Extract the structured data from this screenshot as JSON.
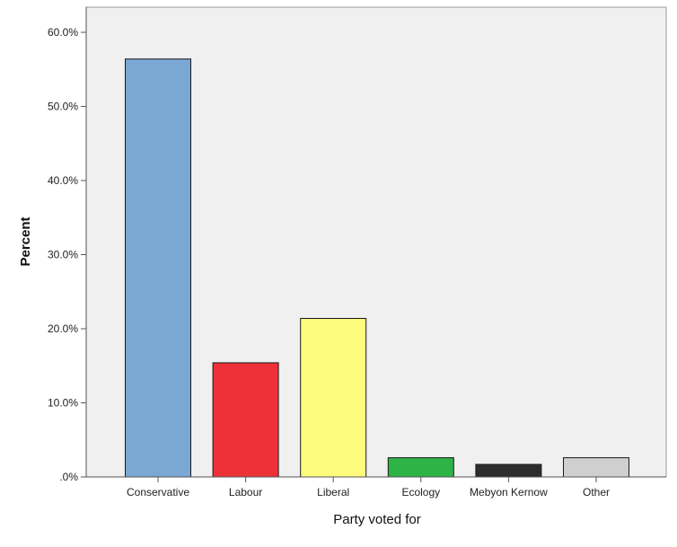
{
  "chart_data": {
    "type": "bar",
    "title": "",
    "xlabel": "Party voted for",
    "ylabel": "Percent",
    "categories": [
      "Conservative",
      "Labour",
      "Liberal",
      "Ecology",
      "Mebyon Kernow",
      "Other"
    ],
    "values": [
      56.4,
      15.4,
      21.4,
      2.6,
      1.7,
      2.6
    ],
    "bar_colors": [
      "#7ba7d4",
      "#ee3138",
      "#fdfa7c",
      "#2db346",
      "#2d2d2d",
      "#cfcfcf"
    ],
    "ylim": [
      0,
      60
    ],
    "yticks": [
      0,
      10,
      20,
      30,
      40,
      50,
      60
    ],
    "ytick_labels": [
      ".0%",
      "10.0%",
      "20.0%",
      "30.0%",
      "40.0%",
      "50.0%",
      "60.0%"
    ],
    "plot_background": "#f0f0f0",
    "grid": false,
    "legend": "none"
  }
}
